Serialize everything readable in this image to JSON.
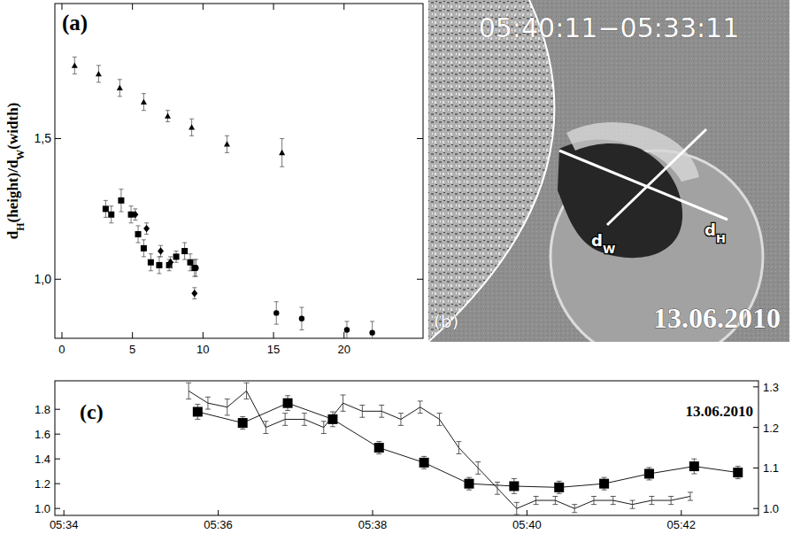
{
  "chart_data": [
    {
      "type": "scatter",
      "panel_label": "(a)",
      "ylabel": [
        {
          "text": "d"
        },
        {
          "text": "H",
          "sub": true
        },
        {
          "text": "(height)/d"
        },
        {
          "text": "W",
          "sub": true
        },
        {
          "text": "(width)"
        }
      ],
      "xlim": [
        -0.5,
        25.6
      ],
      "ylim": [
        0.79,
        1.98
      ],
      "xticks": [
        0,
        5,
        10,
        15,
        20
      ],
      "yticks": [
        {
          "value": 1,
          "label": "1,0"
        },
        {
          "value": 1.5,
          "label": "1,5"
        }
      ],
      "series": [
        {
          "marker": "triangle",
          "color": "#000000",
          "x": [
            0.9,
            2.6,
            4.1,
            5.8,
            7.5,
            9.2,
            11.7,
            15.6
          ],
          "values": [
            1.76,
            1.73,
            1.68,
            1.63,
            1.58,
            1.54,
            1.48,
            1.45
          ],
          "errors": [
            0.03,
            0.03,
            0.03,
            0.03,
            0.02,
            0.03,
            0.03,
            0.05
          ]
        },
        {
          "marker": "square",
          "color": "#000000",
          "x": [
            3.1,
            3.5,
            4.2,
            4.9,
            5.4,
            5.8,
            6.3,
            6.9,
            7.6,
            8.1,
            8.7,
            9.1,
            9.4
          ],
          "values": [
            1.25,
            1.23,
            1.28,
            1.23,
            1.16,
            1.11,
            1.06,
            1.05,
            1.05,
            1.08,
            1.1,
            1.06,
            1.04
          ],
          "errors": [
            0.03,
            0.03,
            0.04,
            0.03,
            0.03,
            0.03,
            0.03,
            0.03,
            0.02,
            0.02,
            0.03,
            0.03,
            0.03
          ]
        },
        {
          "marker": "diamond",
          "color": "#000000",
          "x": [
            5.2,
            6.0,
            7.0,
            7.7,
            9.4
          ],
          "values": [
            1.23,
            1.18,
            1.1,
            1.06,
            0.95
          ],
          "errors": [
            0.02,
            0.02,
            0.02,
            0.02,
            0.02
          ]
        },
        {
          "marker": "circle",
          "color": "#000000",
          "x": [
            9.5,
            15.2,
            17.0,
            20.2,
            22.0
          ],
          "values": [
            1.04,
            0.88,
            0.86,
            0.82,
            0.81
          ],
          "errors": [
            0.03,
            0.04,
            0.04,
            0.03,
            0.04
          ]
        }
      ]
    },
    {
      "type": "image",
      "panel_label": "(b)",
      "title": "05:40:11−05:33:11",
      "date": "13.06.2010",
      "annotations": [
        {
          "text": "d",
          "sub": "W"
        },
        {
          "text": "d",
          "sub": "H"
        }
      ]
    },
    {
      "type": "line",
      "panel_label": "(c)",
      "title": "13.06.2010",
      "xlim": [
        "05:33:53",
        "05:43:00"
      ],
      "xticks": [
        "05:34",
        "05:36",
        "05:38",
        "05:40",
        "05:42"
      ],
      "ylim": [
        0.944,
        2.03
      ],
      "yticks": [
        {
          "value": 1,
          "label": "1.0"
        },
        1.2,
        1.4,
        1.6,
        1.8
      ],
      "y2lim": [
        0.983,
        1.315
      ],
      "y2ticks": [
        {
          "value": 1,
          "label": "1.0"
        },
        1.1,
        1.2,
        1.3
      ],
      "series": [
        {
          "marker": "square",
          "line_style": "solid",
          "color": "#000000",
          "x": [
            "05:35:44",
            "05:36:19",
            "05:36:54",
            "05:37:29",
            "05:38:05",
            "05:38:40",
            "05:39:15",
            "05:39:50",
            "05:40:25",
            "05:41:00",
            "05:41:35",
            "05:42:10",
            "05:42:44"
          ],
          "values": [
            1.78,
            1.69,
            1.85,
            1.72,
            1.49,
            1.37,
            1.2,
            1.18,
            1.17,
            1.2,
            1.28,
            1.34,
            1.29
          ],
          "errors": [
            0.06,
            0.05,
            0.06,
            0.06,
            0.05,
            0.05,
            0.05,
            0.06,
            0.05,
            0.05,
            0.05,
            0.06,
            0.05
          ]
        },
        {
          "marker": "none",
          "line_style": "solid",
          "color": "#000000",
          "axis": "y2",
          "x": [
            "05:35:37",
            "05:35:52",
            "05:36:07",
            "05:36:22",
            "05:36:37",
            "05:36:52",
            "05:37:07",
            "05:37:22",
            "05:37:37",
            "05:37:52",
            "05:38:07",
            "05:38:22",
            "05:38:37",
            "05:38:52",
            "05:39:07",
            "05:39:22",
            "05:39:37",
            "05:39:52",
            "05:40:07",
            "05:40:22",
            "05:40:37",
            "05:40:52",
            "05:41:07",
            "05:41:22",
            "05:41:37",
            "05:41:52",
            "05:42:07"
          ],
          "values": [
            1.29,
            1.26,
            1.25,
            1.29,
            1.2,
            1.22,
            1.22,
            1.2,
            1.26,
            1.24,
            1.24,
            1.22,
            1.25,
            1.22,
            1.15,
            1.1,
            1.05,
            1.0,
            1.02,
            1.02,
            1.0,
            1.02,
            1.02,
            1.01,
            1.02,
            1.02,
            1.03
          ],
          "errors": [
            0.02,
            0.015,
            0.02,
            0.02,
            0.015,
            0.015,
            0.015,
            0.015,
            0.02,
            0.015,
            0.015,
            0.015,
            0.015,
            0.015,
            0.015,
            0.015,
            0.015,
            0.015,
            0.01,
            0.01,
            0.01,
            0.01,
            0.01,
            0.01,
            0.01,
            0.01,
            0.01
          ]
        }
      ]
    }
  ]
}
